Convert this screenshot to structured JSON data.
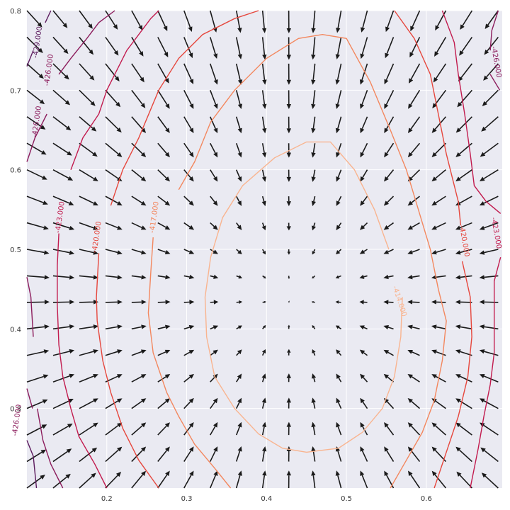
{
  "chart_data": {
    "type": "quiver-contour",
    "title": "",
    "xlabel": "",
    "ylabel": "",
    "xlim": [
      0.1,
      0.695
    ],
    "ylim": [
      0.2,
      0.8
    ],
    "grid": true,
    "x_ticks": [
      "0.2",
      "0.3",
      "0.4",
      "0.5",
      "0.6"
    ],
    "x_tick_values": [
      0.2,
      0.3,
      0.4,
      0.5,
      0.6
    ],
    "y_ticks": [
      "0.3",
      "0.4",
      "0.5",
      "0.6",
      "0.7",
      "0.8"
    ],
    "y_tick_values": [
      0.3,
      0.4,
      0.5,
      0.6,
      0.7,
      0.8
    ],
    "vector_field": {
      "center": [
        0.43,
        0.44
      ],
      "x_range": [
        0.1,
        0.69
      ],
      "y_range": [
        0.2,
        0.8
      ],
      "nx": 19,
      "ny": 19
    },
    "contours": [
      {
        "level": -414.0,
        "label": "-414.000",
        "color": "#f9b48f",
        "label_points": [
          [
            0.564,
            0.434
          ]
        ],
        "points": [
          [
            0.553,
            0.5
          ],
          [
            0.535,
            0.55
          ],
          [
            0.51,
            0.6
          ],
          [
            0.48,
            0.635
          ],
          [
            0.45,
            0.635
          ],
          [
            0.41,
            0.615
          ],
          [
            0.37,
            0.58
          ],
          [
            0.345,
            0.54
          ],
          [
            0.33,
            0.49
          ],
          [
            0.323,
            0.44
          ],
          [
            0.325,
            0.39
          ],
          [
            0.335,
            0.34
          ],
          [
            0.36,
            0.3
          ],
          [
            0.39,
            0.268
          ],
          [
            0.42,
            0.25
          ],
          [
            0.45,
            0.245
          ],
          [
            0.49,
            0.25
          ],
          [
            0.52,
            0.27
          ],
          [
            0.545,
            0.3
          ],
          [
            0.56,
            0.34
          ],
          [
            0.568,
            0.39
          ],
          [
            0.57,
            0.44
          ]
        ]
      },
      {
        "level": -417.0,
        "label": "-417.000",
        "color": "#f3875e",
        "label_points": [
          [
            0.262,
            0.54
          ]
        ],
        "points": [
          [
            0.28,
            0.255
          ],
          [
            0.3,
            0.23
          ],
          [
            0.32,
            0.2
          ],
          [
            0.34,
            0.2
          ],
          [
            0.36,
            0.2
          ],
          [
            0.37,
            0.2
          ]
        ],
        "segments": [
          [
            [
              0.29,
              0.575
            ],
            [
              0.31,
              0.61
            ],
            [
              0.33,
              0.66
            ],
            [
              0.36,
              0.7
            ],
            [
              0.4,
              0.74
            ],
            [
              0.44,
              0.765
            ],
            [
              0.47,
              0.77
            ],
            [
              0.5,
              0.765
            ],
            [
              0.53,
              0.71
            ],
            [
              0.555,
              0.65
            ],
            [
              0.575,
              0.6
            ],
            [
              0.59,
              0.55
            ],
            [
              0.605,
              0.5
            ],
            [
              0.615,
              0.45
            ],
            [
              0.625,
              0.41
            ],
            [
              0.62,
              0.36
            ],
            [
              0.61,
              0.31
            ],
            [
              0.595,
              0.27
            ],
            [
              0.575,
              0.235
            ],
            [
              0.555,
              0.2
            ]
          ],
          [
            [
              0.258,
              0.515
            ],
            [
              0.255,
              0.47
            ],
            [
              0.252,
              0.42
            ],
            [
              0.258,
              0.37
            ],
            [
              0.275,
              0.32
            ],
            [
              0.29,
              0.29
            ],
            [
              0.31,
              0.255
            ],
            [
              0.335,
              0.225
            ],
            [
              0.355,
              0.2
            ]
          ]
        ]
      },
      {
        "level": -420.0,
        "label": "-420.000",
        "color": "#e6473d",
        "label_points": [
          [
            0.19,
            0.515
          ],
          [
            0.645,
            0.51
          ]
        ],
        "segments": [
          [
            [
              0.205,
              0.555
            ],
            [
              0.22,
              0.6
            ],
            [
              0.24,
              0.64
            ],
            [
              0.265,
              0.7
            ],
            [
              0.29,
              0.74
            ],
            [
              0.32,
              0.77
            ],
            [
              0.36,
              0.79
            ],
            [
              0.39,
              0.8
            ]
          ],
          [
            [
              0.19,
              0.495
            ],
            [
              0.187,
              0.44
            ],
            [
              0.188,
              0.41
            ],
            [
              0.195,
              0.36
            ],
            [
              0.205,
              0.32
            ],
            [
              0.22,
              0.275
            ],
            [
              0.24,
              0.235
            ],
            [
              0.265,
              0.2
            ]
          ],
          [
            [
              0.56,
              0.8
            ],
            [
              0.585,
              0.765
            ],
            [
              0.605,
              0.72
            ],
            [
              0.615,
              0.67
            ],
            [
              0.625,
              0.62
            ],
            [
              0.64,
              0.56
            ],
            [
              0.643,
              0.53
            ]
          ],
          [
            [
              0.645,
              0.485
            ],
            [
              0.655,
              0.44
            ],
            [
              0.657,
              0.39
            ],
            [
              0.652,
              0.34
            ],
            [
              0.64,
              0.29
            ],
            [
              0.625,
              0.245
            ],
            [
              0.61,
              0.2
            ]
          ]
        ]
      },
      {
        "level": -423.0,
        "label": "-423.000",
        "color": "#c21b4e",
        "label_points": [
          [
            0.144,
            0.54
          ],
          [
            0.685,
            0.52
          ]
        ],
        "segments": [
          [
            [
              0.155,
              0.6
            ],
            [
              0.17,
              0.64
            ],
            [
              0.19,
              0.67
            ],
            [
              0.2,
              0.7
            ],
            [
              0.225,
              0.75
            ],
            [
              0.255,
              0.79
            ],
            [
              0.265,
              0.8
            ]
          ],
          [
            [
              0.14,
              0.52
            ],
            [
              0.138,
              0.48
            ],
            [
              0.138,
              0.43
            ],
            [
              0.14,
              0.38
            ],
            [
              0.145,
              0.34
            ],
            [
              0.155,
              0.3
            ],
            [
              0.165,
              0.265
            ],
            [
              0.185,
              0.23
            ],
            [
              0.2,
              0.2
            ]
          ],
          [
            [
              0.62,
              0.8
            ],
            [
              0.635,
              0.76
            ],
            [
              0.64,
              0.72
            ],
            [
              0.648,
              0.67
            ],
            [
              0.655,
              0.62
            ],
            [
              0.66,
              0.58
            ],
            [
              0.675,
              0.56
            ],
            [
              0.693,
              0.545
            ]
          ],
          [
            [
              0.693,
              0.49
            ],
            [
              0.685,
              0.46
            ],
            [
              0.685,
              0.41
            ],
            [
              0.685,
              0.37
            ],
            [
              0.68,
              0.33
            ],
            [
              0.672,
              0.29
            ],
            [
              0.665,
              0.25
            ],
            [
              0.655,
              0.2
            ]
          ]
        ]
      },
      {
        "level": -426.0,
        "label": "-426.000",
        "color": "#8c1c5c",
        "label_points": [
          [
            0.115,
            0.66
          ],
          [
            0.13,
            0.725
          ],
          [
            0.685,
            0.735
          ],
          [
            0.09,
            0.285
          ]
        ],
        "segments": [
          [
            [
              0.1,
              0.61
            ],
            [
              0.11,
              0.64
            ],
            [
              0.125,
              0.67
            ]
          ],
          [
            [
              0.14,
              0.72
            ],
            [
              0.155,
              0.74
            ],
            [
              0.175,
              0.765
            ],
            [
              0.19,
              0.785
            ],
            [
              0.21,
              0.8
            ]
          ],
          [
            [
              0.1,
              0.465
            ],
            [
              0.105,
              0.44
            ],
            [
              0.108,
              0.39
            ]
          ],
          [
            [
              0.113,
              0.3
            ],
            [
              0.12,
              0.26
            ],
            [
              0.13,
              0.23
            ],
            [
              0.145,
              0.2
            ]
          ],
          [
            [
              0.1,
              0.325
            ],
            [
              0.107,
              0.3
            ]
          ],
          [
            [
              0.69,
              0.8
            ],
            [
              0.682,
              0.775
            ],
            [
              0.68,
              0.75
            ]
          ],
          [
            [
              0.68,
              0.72
            ],
            [
              0.692,
              0.7
            ]
          ]
        ]
      },
      {
        "level": -429.0,
        "label": "-429.000",
        "color": "#5c1b5e",
        "label_points": [
          [
            0.116,
            0.76
          ]
        ],
        "segments": [
          [
            [
              0.1,
              0.73
            ],
            [
              0.108,
              0.75
            ]
          ],
          [
            [
              0.123,
              0.785
            ],
            [
              0.13,
              0.8
            ]
          ],
          [
            [
              0.1,
              0.26
            ],
            [
              0.108,
              0.24
            ],
            [
              0.112,
              0.2
            ]
          ]
        ]
      }
    ]
  }
}
